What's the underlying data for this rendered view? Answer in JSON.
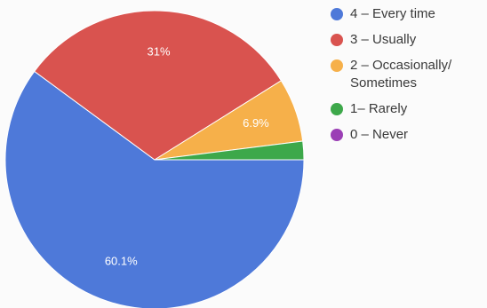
{
  "chart_data": {
    "type": "pie",
    "title": "",
    "legend_position": "right",
    "slices": [
      {
        "label": "4 – Every time",
        "value": 60.1,
        "display": "60.1%",
        "color": "#4e79d9"
      },
      {
        "label": "3 – Usually",
        "value": 31,
        "display": "31%",
        "color": "#d9534f"
      },
      {
        "label": "2 – Occasionally/\nSometimes",
        "value": 6.9,
        "display": "6.9%",
        "color": "#f6b04a"
      },
      {
        "label": "1– Rarely",
        "value": 2.0,
        "display": "",
        "color": "#3da84a"
      },
      {
        "label": "0 – Never",
        "value": 0,
        "display": "",
        "color": "#9b3fb5"
      }
    ]
  }
}
